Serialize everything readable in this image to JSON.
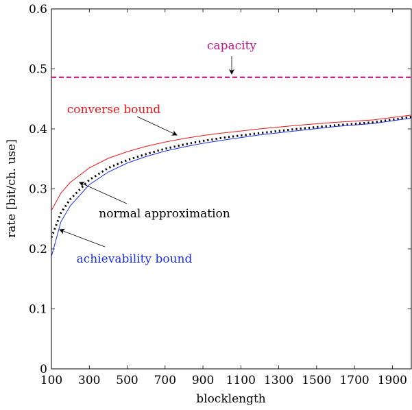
{
  "chart_data": {
    "type": "line",
    "title": "",
    "xlabel": "blocklength",
    "ylabel": "rate [bit/ch. use]",
    "xlim": [
      100,
      2000
    ],
    "ylim": [
      0,
      0.6
    ],
    "xticks": [
      100,
      300,
      500,
      700,
      900,
      1100,
      1300,
      1500,
      1700,
      1900
    ],
    "yticks": [
      0,
      0.1,
      0.2,
      0.3,
      0.4,
      0.5,
      0.6
    ],
    "ytick_labels": [
      "0",
      "0.1",
      "0.2",
      "0.3",
      "0.4",
      "0.5",
      "0.6"
    ],
    "grid": false,
    "series": [
      {
        "name": "capacity",
        "color": "#c71585",
        "style": "dashed",
        "x": [
          100,
          2000
        ],
        "y": [
          0.486,
          0.486
        ]
      },
      {
        "name": "converse bound",
        "color": "#e8141b",
        "style": "solid",
        "x": [
          100,
          150,
          200,
          300,
          400,
          500,
          600,
          700,
          800,
          900,
          1000,
          1200,
          1400,
          1600,
          1800,
          2000
        ],
        "y": [
          0.264,
          0.293,
          0.311,
          0.335,
          0.351,
          0.362,
          0.371,
          0.378,
          0.384,
          0.389,
          0.393,
          0.4,
          0.406,
          0.411,
          0.415,
          0.423
        ]
      },
      {
        "name": "normal approximation",
        "color": "#000000",
        "style": "dotted",
        "x": [
          100,
          150,
          200,
          300,
          400,
          500,
          600,
          700,
          800,
          900,
          1000,
          1200,
          1400,
          1600,
          1800,
          2000
        ],
        "y": [
          0.219,
          0.26,
          0.283,
          0.315,
          0.335,
          0.348,
          0.358,
          0.367,
          0.374,
          0.38,
          0.385,
          0.393,
          0.4,
          0.406,
          0.411,
          0.42
        ]
      },
      {
        "name": "achievability bound",
        "color": "#1a2ee8",
        "style": "solid",
        "x": [
          100,
          150,
          200,
          300,
          400,
          500,
          600,
          700,
          800,
          900,
          1000,
          1200,
          1400,
          1600,
          1800,
          2000
        ],
        "y": [
          0.187,
          0.245,
          0.272,
          0.307,
          0.328,
          0.343,
          0.354,
          0.363,
          0.37,
          0.376,
          0.381,
          0.39,
          0.397,
          0.404,
          0.409,
          0.418
        ]
      }
    ],
    "annotations": [
      {
        "text": "capacity",
        "color": "#c71585"
      },
      {
        "text": "converse bound",
        "color": "#e8141b"
      },
      {
        "text": "normal approximation",
        "color": "#000000"
      },
      {
        "text": "achievability bound",
        "color": "#1a2ee8"
      }
    ]
  }
}
